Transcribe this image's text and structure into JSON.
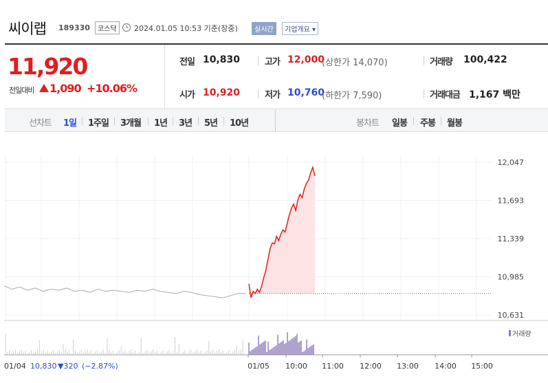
{
  "header": {
    "name": "씨이랩",
    "code": "189330",
    "market": "코스닥",
    "timestamp": "2024.01.05 10:53  기준(장중)",
    "realtime_btn": "실시간",
    "overview_btn": "기업개요 ▾"
  },
  "quote": {
    "price": "11,920",
    "change_label": "전일대비",
    "change_value": "1,090",
    "change_pct": "+10.06%",
    "prev_label": "전일",
    "prev": "10,830",
    "high_label": "고가",
    "high": "12,000",
    "upper_limit": "(상한가 14,070)",
    "volume_label": "거래량",
    "volume": "100,422",
    "open_label": "시가",
    "open": "10,920",
    "low_label": "저가",
    "low": "10,760",
    "lower_limit": "(하한가 7,590)",
    "amount_label": "거래대금",
    "amount": "1,167 백만"
  },
  "tabs": {
    "line_label": "선차트",
    "line_tabs": [
      "1일",
      "1주일",
      "3개월",
      "1년",
      "3년",
      "5년",
      "10년"
    ],
    "candle_label": "봉차트",
    "candle_tabs": [
      "일봉",
      "주봉",
      "월봉"
    ]
  },
  "chart_data": {
    "type": "line",
    "y_ticks": [
      "12,047",
      "11,693",
      "11,339",
      "10,985",
      "10,631"
    ],
    "ylim": [
      10631,
      12047
    ],
    "x_ticks": [
      "01/05",
      "10:00",
      "11:00",
      "12:00",
      "13:00",
      "14:00",
      "15:00"
    ],
    "reference_price": 10830,
    "prev_day_label": "01/04",
    "prev_day_close": "10,830",
    "prev_day_change": "▼320",
    "prev_day_pct": "(−2.87%)",
    "volume_legend": "거래량",
    "prev_day_series": [
      10900,
      10870,
      10890,
      10860,
      10880,
      10850,
      10870,
      10860,
      10880,
      10850,
      10860,
      10840,
      10870,
      10850,
      10860,
      10850,
      10840,
      10860,
      10850,
      10870,
      10850,
      10840,
      10830,
      10850,
      10840,
      10820,
      10810,
      10800,
      10790,
      10810,
      10830,
      10830
    ],
    "today_series": [
      10920,
      10790,
      10850,
      10830,
      10870,
      10840,
      10900,
      10980,
      11050,
      11150,
      11250,
      11300,
      11290,
      11360,
      11320,
      11380,
      11420,
      11400,
      11480,
      11560,
      11620,
      11660,
      11600,
      11700,
      11750,
      11720,
      11800,
      11850,
      11880,
      11950,
      12000,
      11920
    ],
    "colors": {
      "up": "#e01e1e",
      "prev": "#aaaaaa",
      "volume": "#8d7ab8"
    }
  }
}
